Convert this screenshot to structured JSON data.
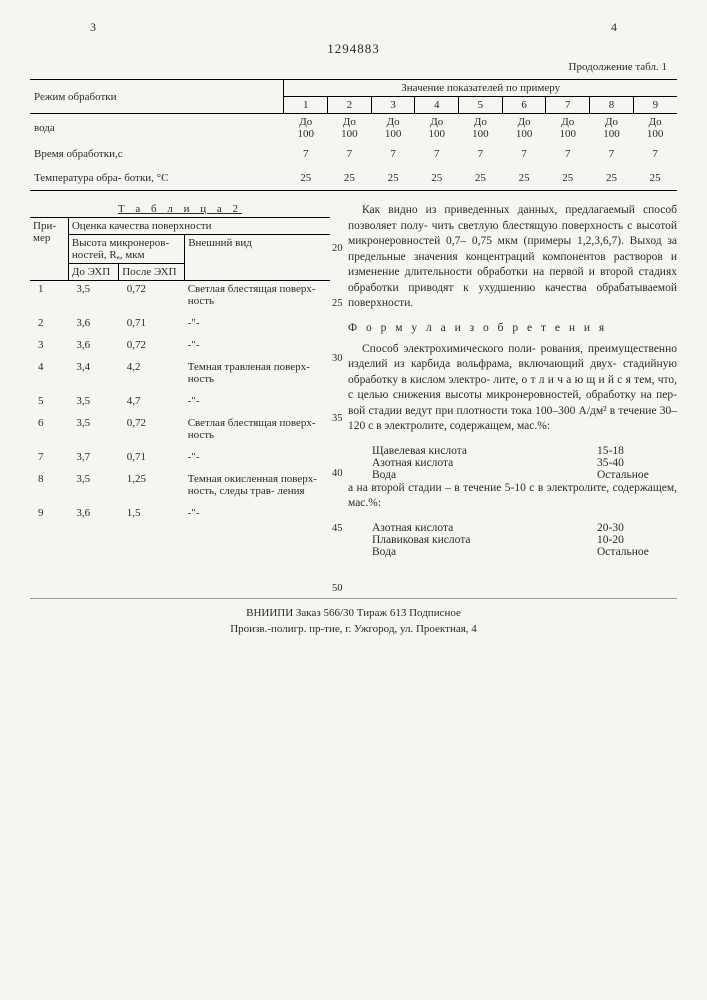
{
  "page_left": "3",
  "page_right": "4",
  "docid": "1294883",
  "continuation": "Продолжение табл. 1",
  "t1": {
    "h_mode": "Режим обработки",
    "h_values": "Значение показателей по примеру",
    "cols": [
      "1",
      "2",
      "3",
      "4",
      "5",
      "6",
      "7",
      "8",
      "9"
    ],
    "rows": [
      {
        "label": "вода",
        "vals": [
          "До 100",
          "До 100",
          "До 100",
          "До 100",
          "До 100",
          "До 100",
          "До 100",
          "До 100",
          "До 100"
        ]
      },
      {
        "label": "Время обработки,с",
        "vals": [
          "7",
          "7",
          "7",
          "7",
          "7",
          "7",
          "7",
          "7",
          "7"
        ]
      },
      {
        "label": "Температура обра- ботки, °С",
        "vals": [
          "25",
          "25",
          "25",
          "25",
          "25",
          "25",
          "25",
          "25",
          "25"
        ]
      }
    ]
  },
  "t2": {
    "title": "Т а б л и ц а 2",
    "h_primer": "При- мер",
    "h_quality": "Оценка качества поверхности",
    "h_height": "Высота микронеров- ностей, Rₐ, мкм",
    "h_look": "Внешний вид",
    "h_before": "До ЭХП",
    "h_after": "После ЭХП",
    "rows": [
      {
        "n": "1",
        "b": "3,5",
        "a": "0,72",
        "look": "Светлая блестящая поверх- ность"
      },
      {
        "n": "2",
        "b": "3,6",
        "a": "0,71",
        "look": "-\"-"
      },
      {
        "n": "3",
        "b": "3,6",
        "a": "0,72",
        "look": "-\"-"
      },
      {
        "n": "4",
        "b": "3,4",
        "a": "4,2",
        "look": "Темная травленая поверх- ность"
      },
      {
        "n": "5",
        "b": "3,5",
        "a": "4,7",
        "look": "-\"-"
      },
      {
        "n": "6",
        "b": "3,5",
        "a": "0,72",
        "look": "Светлая блестящая поверх- ность"
      },
      {
        "n": "7",
        "b": "3,7",
        "a": "0,71",
        "look": "-\"-"
      },
      {
        "n": "8",
        "b": "3,5",
        "a": "1,25",
        "look": "Темная окисленная поверх- ность, следы трав- ления"
      },
      {
        "n": "9",
        "b": "3,6",
        "a": "1,5",
        "look": "-\"-"
      }
    ]
  },
  "text": {
    "p1": "Как видно из приведенных данных, предлагаемый способ позволяет полу- чить светлую блестящую поверхность с высотой микронеровностей 0,7– 0,75 мкм (примеры 1,2,3,6,7). Выход за предельные значения концентраций компонентов растворов и изменение длительности обработки на первой и второй стадиях обработки приводят к ухудшению качества обрабатываемой поверхности.",
    "formula": "Ф о р м у л а  и з о б р е т е н и я",
    "p2": "Способ электрохимического поли- рования, преимущественно изделий из карбида вольфрама, включающий двух- стадийную обработку в кислом электро- лите, о т л и ч а ю щ и й с я тем, что, с целью снижения высоты микронеровностей, обработку на пер- вой стадии ведут при плотности тока 100–300 А/дм² в течение 30–120 с в электролите, содержащем, мас.%:",
    "ing1": [
      {
        "n": "Щавелевая кислота",
        "v": "15-18"
      },
      {
        "n": "Азотная кислота",
        "v": "35-40"
      },
      {
        "n": "Вода",
        "v": "Остальное"
      }
    ],
    "p3": "а на второй стадии – в течение 5-10 с в электролите, содержащем, мас.%:",
    "ing2": [
      {
        "n": "Азотная кислота",
        "v": "20-30"
      },
      {
        "n": "Плавиковая кислота",
        "v": "10-20"
      },
      {
        "n": "Вода",
        "v": "Остальное"
      }
    ]
  },
  "linenums": [
    "20",
    "25",
    "30",
    "35",
    "40",
    "45",
    "50"
  ],
  "footer": {
    "l1": "ВНИИПИ Заказ 566/30       Тираж 613     Подписное",
    "l2": "Произв.-полигр. пр-тие, г. Ужгород, ул. Проектная, 4"
  }
}
